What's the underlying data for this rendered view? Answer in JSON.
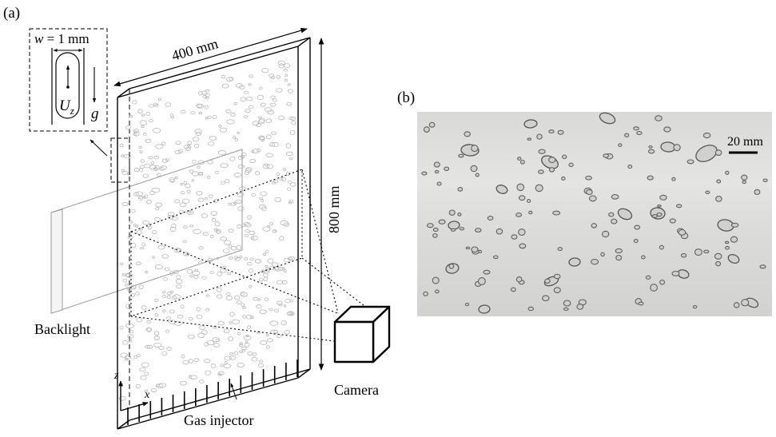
{
  "panel_a": {
    "label": "(a)",
    "width_label": "400 mm",
    "height_label": "800 mm",
    "inset": {
      "gap_label": "w = 1 mm",
      "velocity_label": "U",
      "velocity_sub": "z",
      "gravity_label": "g"
    },
    "backlight_label": "Backlight",
    "camera_label": "Camera",
    "injector_label": "Gas injector",
    "axis_z": "z",
    "axis_x": "x"
  },
  "panel_b": {
    "label": "(b)",
    "scale_label": "20 mm"
  }
}
